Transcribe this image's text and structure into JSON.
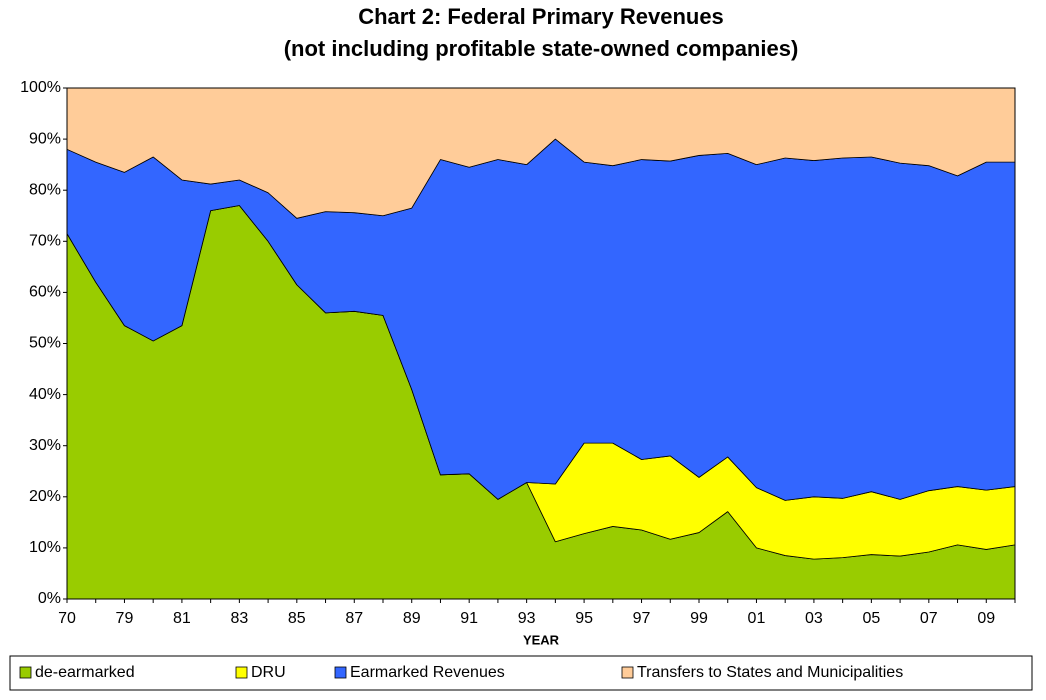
{
  "chart_data": {
    "type": "stacked-area",
    "title": "Chart 2: Federal Primary Revenues",
    "subtitle": "(not including profitable state-owned companies)",
    "x_label": "YEAR",
    "categories": [
      "70",
      null,
      "79",
      null,
      "81",
      null,
      "83",
      null,
      "85",
      null,
      "87",
      null,
      "89",
      null,
      "91",
      null,
      "93",
      null,
      "95",
      null,
      "97",
      null,
      "99",
      null,
      "01",
      null,
      "03",
      null,
      "05",
      null,
      "07",
      null,
      "09",
      null
    ],
    "series": [
      {
        "name": "de-earmarked",
        "color": "#99cc00",
        "values": [
          71.5,
          62,
          53.5,
          50.5,
          53.5,
          76,
          77,
          70,
          61.5,
          56,
          56.3,
          55.5,
          41,
          24.3,
          24.5,
          19.5,
          22.8,
          11.2,
          12.8,
          14.2,
          13.5,
          11.7,
          13,
          17.1,
          10,
          8.5,
          7.8,
          8.1,
          8.7,
          8.4,
          9.2,
          10.6,
          9.7,
          10.6
        ]
      },
      {
        "name": "DRU",
        "color": "#ffff00",
        "values": [
          0,
          0,
          0,
          0,
          0,
          0,
          0,
          0,
          0,
          0,
          0,
          0,
          0,
          0,
          0,
          0,
          0,
          11.3,
          17.7,
          16.3,
          13.8,
          16.3,
          10.8,
          10.7,
          11.8,
          10.8,
          12.2,
          11.6,
          12.3,
          11.1,
          12,
          11.4,
          11.6,
          11.4
        ]
      },
      {
        "name": "Earmarked Revenues",
        "color": "#3366ff",
        "values": [
          16.5,
          23.5,
          30,
          36,
          28.5,
          5.2,
          5,
          9.5,
          13,
          19.8,
          19.3,
          19.5,
          35.5,
          61.7,
          60,
          66.5,
          62.2,
          67.5,
          55,
          54.3,
          58.7,
          57.7,
          63,
          59.4,
          63.2,
          67,
          65.8,
          66.6,
          65.5,
          65.8,
          63.6,
          60.8,
          64.2,
          63.5
        ]
      },
      {
        "name": "Transfers to States and Municipalities",
        "color": "#ffcc99",
        "values": [
          12,
          14.5,
          16.5,
          13.5,
          18,
          18.8,
          18,
          20.5,
          25.5,
          24.2,
          24.4,
          25,
          23.5,
          14,
          15.5,
          14,
          15,
          10,
          14.5,
          15.2,
          14,
          14.3,
          13.2,
          12.8,
          15,
          13.7,
          14.2,
          13.7,
          13.5,
          14.7,
          15.2,
          17.2,
          14.5,
          14.5
        ]
      }
    ],
    "ylim": [
      0,
      100
    ],
    "yticks": [
      {
        "value": 0,
        "label": "0%"
      },
      {
        "value": 10,
        "label": "10%"
      },
      {
        "value": 20,
        "label": "20%"
      },
      {
        "value": 30,
        "label": "30%"
      },
      {
        "value": 40,
        "label": "40%"
      },
      {
        "value": 50,
        "label": "50%"
      },
      {
        "value": 60,
        "label": "60%"
      },
      {
        "value": 70,
        "label": "70%"
      },
      {
        "value": 80,
        "label": "80%"
      },
      {
        "value": 90,
        "label": "90%"
      },
      {
        "value": 100,
        "label": "100%"
      }
    ],
    "grid": false,
    "legend": "bottom"
  }
}
